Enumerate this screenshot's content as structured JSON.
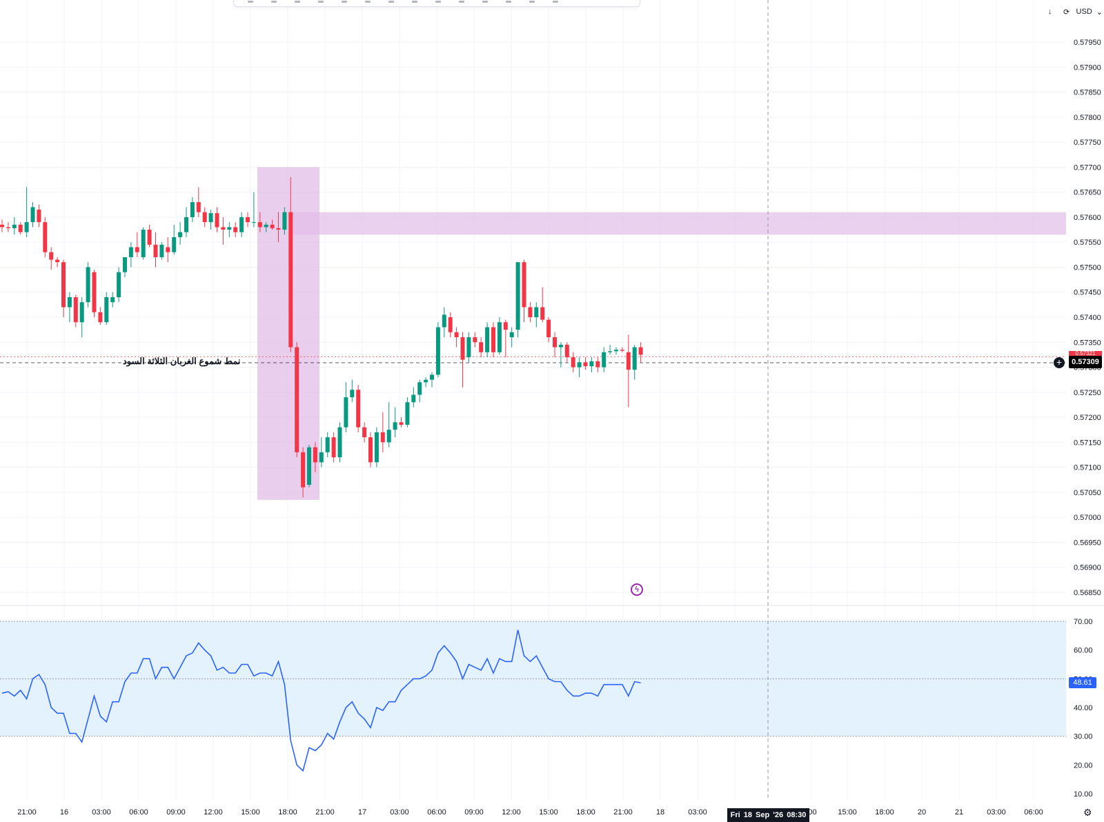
{
  "toolbar": {
    "currency": "USD",
    "download_icon": "arrow-down-icon",
    "refresh_icon": "refresh-icon"
  },
  "price_axis": {
    "labels": [
      "0.57950",
      "0.57900",
      "0.57850",
      "0.57800",
      "0.57750",
      "0.57700",
      "0.57650",
      "0.57600",
      "0.57550",
      "0.57500",
      "0.57450",
      "0.57400",
      "0.57350",
      "0.57300",
      "0.57250",
      "0.57200",
      "0.57150",
      "0.57100",
      "0.57050",
      "0.57000",
      "0.56950",
      "0.56900",
      "0.56850"
    ],
    "current_price": "0.57309",
    "hidden_price": "0.57321"
  },
  "rsi_axis": {
    "labels": [
      "70.00",
      "60.00",
      "50.00",
      "40.00",
      "30.00",
      "20.00",
      "10.00"
    ],
    "current_value": "48.61"
  },
  "time_axis": {
    "labels": [
      "21:00",
      "16",
      "03:00",
      "06:00",
      "09:00",
      "12:00",
      "15:00",
      "18:00",
      "21:00",
      "17",
      "03:00",
      "06:00",
      "09:00",
      "12:00",
      "15:00",
      "18:00",
      "21:00",
      "18",
      "03:00",
      "",
      ":00",
      "15:00",
      "18:00",
      "20",
      "21",
      "03:00",
      "06:00"
    ],
    "crosshair_label": "Fri 18 Sep '26   08:30"
  },
  "annotation": {
    "text": "نمط شموع الغربان الثلاثة السود"
  },
  "colors": {
    "up": "#089981",
    "down": "#f23645",
    "zone": "#e1bee7",
    "rsi_line": "#2962ff",
    "rsi_band": "#e3f2fd"
  },
  "chart_data": {
    "type": "candlestick",
    "ylim": [
      0.5682,
      0.5799
    ],
    "candles": [
      {
        "o": 0.57585,
        "h": 0.57595,
        "l": 0.5757,
        "c": 0.5758
      },
      {
        "o": 0.5758,
        "h": 0.5759,
        "l": 0.5757,
        "c": 0.57578
      },
      {
        "o": 0.57578,
        "h": 0.576,
        "l": 0.57565,
        "c": 0.57585
      },
      {
        "o": 0.57585,
        "h": 0.5759,
        "l": 0.57565,
        "c": 0.5757
      },
      {
        "o": 0.5757,
        "h": 0.5766,
        "l": 0.5756,
        "c": 0.5759
      },
      {
        "o": 0.5759,
        "h": 0.5763,
        "l": 0.5758,
        "c": 0.5762
      },
      {
        "o": 0.57615,
        "h": 0.57625,
        "l": 0.5758,
        "c": 0.5759
      },
      {
        "o": 0.5759,
        "h": 0.576,
        "l": 0.5752,
        "c": 0.5753
      },
      {
        "o": 0.5753,
        "h": 0.5754,
        "l": 0.57495,
        "c": 0.57515
      },
      {
        "o": 0.57515,
        "h": 0.5752,
        "l": 0.575,
        "c": 0.5751
      },
      {
        "o": 0.5751,
        "h": 0.57515,
        "l": 0.574,
        "c": 0.5742
      },
      {
        "o": 0.5742,
        "h": 0.5745,
        "l": 0.5739,
        "c": 0.5744
      },
      {
        "o": 0.5744,
        "h": 0.57445,
        "l": 0.5738,
        "c": 0.5739
      },
      {
        "o": 0.5739,
        "h": 0.5744,
        "l": 0.5736,
        "c": 0.5743
      },
      {
        "o": 0.5743,
        "h": 0.5751,
        "l": 0.5742,
        "c": 0.575
      },
      {
        "o": 0.5749,
        "h": 0.57495,
        "l": 0.574,
        "c": 0.5741
      },
      {
        "o": 0.5741,
        "h": 0.5742,
        "l": 0.57385,
        "c": 0.5739
      },
      {
        "o": 0.5739,
        "h": 0.5745,
        "l": 0.57385,
        "c": 0.5744
      },
      {
        "o": 0.5743,
        "h": 0.5745,
        "l": 0.5742,
        "c": 0.5744
      },
      {
        "o": 0.5744,
        "h": 0.575,
        "l": 0.5743,
        "c": 0.5749
      },
      {
        "o": 0.5749,
        "h": 0.5752,
        "l": 0.5748,
        "c": 0.5752
      },
      {
        "o": 0.5752,
        "h": 0.5755,
        "l": 0.575,
        "c": 0.5754
      },
      {
        "o": 0.5754,
        "h": 0.5757,
        "l": 0.5752,
        "c": 0.5753
      },
      {
        "o": 0.5752,
        "h": 0.5758,
        "l": 0.57515,
        "c": 0.57575
      },
      {
        "o": 0.57575,
        "h": 0.57585,
        "l": 0.5754,
        "c": 0.57545
      },
      {
        "o": 0.57545,
        "h": 0.5757,
        "l": 0.575,
        "c": 0.5752
      },
      {
        "o": 0.5752,
        "h": 0.5755,
        "l": 0.57515,
        "c": 0.57545
      },
      {
        "o": 0.5754,
        "h": 0.5756,
        "l": 0.5751,
        "c": 0.5753
      },
      {
        "o": 0.5753,
        "h": 0.57585,
        "l": 0.57525,
        "c": 0.5756
      },
      {
        "o": 0.5756,
        "h": 0.5759,
        "l": 0.57545,
        "c": 0.5757
      },
      {
        "o": 0.5757,
        "h": 0.5762,
        "l": 0.5756,
        "c": 0.576
      },
      {
        "o": 0.576,
        "h": 0.5764,
        "l": 0.5759,
        "c": 0.5763
      },
      {
        "o": 0.5763,
        "h": 0.5766,
        "l": 0.576,
        "c": 0.5761
      },
      {
        "o": 0.5761,
        "h": 0.5762,
        "l": 0.5758,
        "c": 0.5759
      },
      {
        "o": 0.5759,
        "h": 0.57615,
        "l": 0.57575,
        "c": 0.57608
      },
      {
        "o": 0.57608,
        "h": 0.5762,
        "l": 0.5757,
        "c": 0.5758
      },
      {
        "o": 0.5758,
        "h": 0.576,
        "l": 0.57545,
        "c": 0.57575
      },
      {
        "o": 0.57575,
        "h": 0.5759,
        "l": 0.5756,
        "c": 0.5758
      },
      {
        "o": 0.5758,
        "h": 0.5759,
        "l": 0.5756,
        "c": 0.5757
      },
      {
        "o": 0.5757,
        "h": 0.5761,
        "l": 0.5756,
        "c": 0.576
      },
      {
        "o": 0.576,
        "h": 0.5761,
        "l": 0.5758,
        "c": 0.5759
      },
      {
        "o": 0.5759,
        "h": 0.5765,
        "l": 0.5758,
        "c": 0.5759
      },
      {
        "o": 0.5759,
        "h": 0.5761,
        "l": 0.5757,
        "c": 0.5758
      },
      {
        "o": 0.5758,
        "h": 0.5759,
        "l": 0.5757,
        "c": 0.57585
      },
      {
        "o": 0.57585,
        "h": 0.57595,
        "l": 0.57575,
        "c": 0.57578
      },
      {
        "o": 0.57578,
        "h": 0.5761,
        "l": 0.5755,
        "c": 0.57575
      },
      {
        "o": 0.57575,
        "h": 0.5762,
        "l": 0.57565,
        "c": 0.5761
      },
      {
        "o": 0.5761,
        "h": 0.5768,
        "l": 0.5733,
        "c": 0.5734
      },
      {
        "o": 0.5734,
        "h": 0.5735,
        "l": 0.5712,
        "c": 0.5713
      },
      {
        "o": 0.5713,
        "h": 0.5714,
        "l": 0.5704,
        "c": 0.5706
      },
      {
        "o": 0.57065,
        "h": 0.57145,
        "l": 0.5706,
        "c": 0.5714
      },
      {
        "o": 0.5714,
        "h": 0.5715,
        "l": 0.5709,
        "c": 0.5711
      },
      {
        "o": 0.5711,
        "h": 0.5716,
        "l": 0.571,
        "c": 0.5713
      },
      {
        "o": 0.5713,
        "h": 0.5717,
        "l": 0.5712,
        "c": 0.5716
      },
      {
        "o": 0.5716,
        "h": 0.5717,
        "l": 0.5711,
        "c": 0.5712
      },
      {
        "o": 0.5712,
        "h": 0.5719,
        "l": 0.5711,
        "c": 0.5718
      },
      {
        "o": 0.5718,
        "h": 0.5727,
        "l": 0.5717,
        "c": 0.5724
      },
      {
        "o": 0.5724,
        "h": 0.57275,
        "l": 0.5723,
        "c": 0.57255
      },
      {
        "o": 0.57255,
        "h": 0.57265,
        "l": 0.5717,
        "c": 0.5718
      },
      {
        "o": 0.5718,
        "h": 0.5719,
        "l": 0.5715,
        "c": 0.5716
      },
      {
        "o": 0.5716,
        "h": 0.5717,
        "l": 0.571,
        "c": 0.5711
      },
      {
        "o": 0.5711,
        "h": 0.5718,
        "l": 0.571,
        "c": 0.5717
      },
      {
        "o": 0.5717,
        "h": 0.5721,
        "l": 0.5713,
        "c": 0.5715
      },
      {
        "o": 0.5715,
        "h": 0.5723,
        "l": 0.5714,
        "c": 0.57175
      },
      {
        "o": 0.57175,
        "h": 0.5722,
        "l": 0.5716,
        "c": 0.5719
      },
      {
        "o": 0.5719,
        "h": 0.572,
        "l": 0.5718,
        "c": 0.57185
      },
      {
        "o": 0.57185,
        "h": 0.5724,
        "l": 0.5718,
        "c": 0.5723
      },
      {
        "o": 0.5723,
        "h": 0.5726,
        "l": 0.5722,
        "c": 0.57245
      },
      {
        "o": 0.57245,
        "h": 0.57275,
        "l": 0.5723,
        "c": 0.5727
      },
      {
        "o": 0.5727,
        "h": 0.5728,
        "l": 0.5726,
        "c": 0.57275
      },
      {
        "o": 0.57275,
        "h": 0.5729,
        "l": 0.5726,
        "c": 0.57285
      },
      {
        "o": 0.57285,
        "h": 0.5739,
        "l": 0.5728,
        "c": 0.5738
      },
      {
        "o": 0.5738,
        "h": 0.5742,
        "l": 0.5736,
        "c": 0.57405
      },
      {
        "o": 0.574,
        "h": 0.5741,
        "l": 0.5736,
        "c": 0.5737
      },
      {
        "o": 0.5737,
        "h": 0.5738,
        "l": 0.5734,
        "c": 0.5736
      },
      {
        "o": 0.5736,
        "h": 0.5737,
        "l": 0.5726,
        "c": 0.57315
      },
      {
        "o": 0.5732,
        "h": 0.5737,
        "l": 0.5731,
        "c": 0.5736
      },
      {
        "o": 0.5736,
        "h": 0.5737,
        "l": 0.5734,
        "c": 0.5735
      },
      {
        "o": 0.5735,
        "h": 0.5736,
        "l": 0.5732,
        "c": 0.5733
      },
      {
        "o": 0.5733,
        "h": 0.5739,
        "l": 0.5732,
        "c": 0.5738
      },
      {
        "o": 0.5738,
        "h": 0.5739,
        "l": 0.5732,
        "c": 0.5733
      },
      {
        "o": 0.5733,
        "h": 0.574,
        "l": 0.57325,
        "c": 0.5739
      },
      {
        "o": 0.5739,
        "h": 0.57395,
        "l": 0.5732,
        "c": 0.57375
      },
      {
        "o": 0.5736,
        "h": 0.5738,
        "l": 0.5734,
        "c": 0.5737
      },
      {
        "o": 0.57375,
        "h": 0.5751,
        "l": 0.5736,
        "c": 0.5751
      },
      {
        "o": 0.5751,
        "h": 0.57515,
        "l": 0.5739,
        "c": 0.5742
      },
      {
        "o": 0.5742,
        "h": 0.5743,
        "l": 0.5739,
        "c": 0.574
      },
      {
        "o": 0.574,
        "h": 0.5743,
        "l": 0.5738,
        "c": 0.5742
      },
      {
        "o": 0.5742,
        "h": 0.5746,
        "l": 0.5739,
        "c": 0.57395
      },
      {
        "o": 0.57395,
        "h": 0.574,
        "l": 0.5735,
        "c": 0.5736
      },
      {
        "o": 0.5736,
        "h": 0.5737,
        "l": 0.5732,
        "c": 0.5734
      },
      {
        "o": 0.5734,
        "h": 0.5735,
        "l": 0.573,
        "c": 0.57345
      },
      {
        "o": 0.57345,
        "h": 0.5735,
        "l": 0.5731,
        "c": 0.5732
      },
      {
        "o": 0.5732,
        "h": 0.5733,
        "l": 0.5729,
        "c": 0.573
      },
      {
        "o": 0.573,
        "h": 0.5732,
        "l": 0.5728,
        "c": 0.5731
      },
      {
        "o": 0.5731,
        "h": 0.5732,
        "l": 0.57295,
        "c": 0.57302
      },
      {
        "o": 0.57302,
        "h": 0.5732,
        "l": 0.5729,
        "c": 0.57312
      },
      {
        "o": 0.57312,
        "h": 0.5732,
        "l": 0.5729,
        "c": 0.573
      },
      {
        "o": 0.573,
        "h": 0.5734,
        "l": 0.5729,
        "c": 0.5733
      },
      {
        "o": 0.5733,
        "h": 0.57345,
        "l": 0.57325,
        "c": 0.57332
      },
      {
        "o": 0.57332,
        "h": 0.5734,
        "l": 0.57325,
        "c": 0.57335
      },
      {
        "o": 0.57335,
        "h": 0.5734,
        "l": 0.5733,
        "c": 0.57333
      },
      {
        "o": 0.5733,
        "h": 0.57365,
        "l": 0.5722,
        "c": 0.57295
      },
      {
        "o": 0.57295,
        "h": 0.57345,
        "l": 0.57275,
        "c": 0.5734
      },
      {
        "o": 0.5734,
        "h": 0.5735,
        "l": 0.5731,
        "c": 0.57325
      }
    ],
    "zones": [
      {
        "label": "",
        "price_top": 0.577,
        "price_bottom": 0.57035
      },
      {
        "label": "",
        "price_top": 0.5761,
        "price_bottom": 0.57565
      }
    ],
    "rsi": {
      "ylim": [
        10,
        70
      ],
      "values": [
        45,
        45.5,
        44,
        46,
        43,
        50,
        51.5,
        48,
        40,
        38,
        38,
        31,
        31,
        28,
        36,
        44,
        37,
        35,
        42,
        42,
        49,
        52,
        52,
        57,
        57,
        50,
        54,
        54,
        50,
        54,
        58,
        59,
        62.5,
        60,
        58,
        53,
        54,
        52,
        52,
        55,
        55,
        51,
        52,
        52,
        51,
        56,
        48,
        28.5,
        20,
        18,
        26,
        25,
        27,
        31,
        29,
        35,
        40,
        42,
        38,
        36,
        33,
        40,
        39,
        42,
        42,
        46,
        48,
        50,
        50,
        51,
        53,
        59,
        61.5,
        59,
        56,
        50,
        55,
        54,
        53,
        57,
        52,
        57,
        56,
        56,
        67,
        58,
        56,
        58,
        54,
        50,
        49,
        49,
        46,
        44,
        44,
        45,
        45,
        44,
        48,
        48,
        48,
        48,
        44,
        49,
        48.61
      ]
    }
  }
}
